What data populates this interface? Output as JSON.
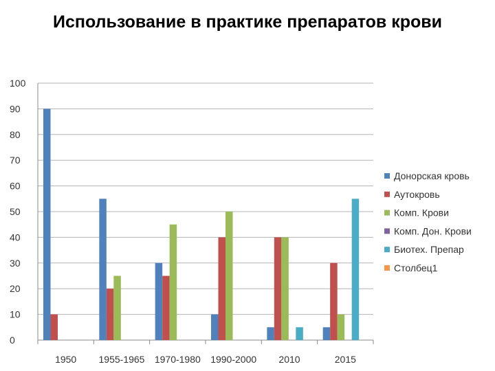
{
  "title": "Использование в практике препаратов крови",
  "chart_data": {
    "type": "bar",
    "title": "",
    "xlabel": "",
    "ylabel": "",
    "ylim": [
      0,
      100
    ],
    "yticks": [
      0,
      10,
      20,
      30,
      40,
      50,
      60,
      70,
      80,
      90,
      100
    ],
    "grid": true,
    "legend_position": "right",
    "categories": [
      "1950",
      "1955-1965",
      "1970-1980",
      "1990-2000",
      "2010",
      "2015"
    ],
    "series": [
      {
        "name": "Донорская кровь",
        "color": "#4F81BD",
        "values": [
          90,
          55,
          30,
          10,
          5,
          5
        ]
      },
      {
        "name": "Аутокровь",
        "color": "#C0504D",
        "values": [
          10,
          20,
          25,
          40,
          40,
          30
        ]
      },
      {
        "name": "Комп. Крови",
        "color": "#9BBB59",
        "values": [
          0,
          25,
          45,
          50,
          40,
          10
        ]
      },
      {
        "name": "Комп. Дон. Крови",
        "color": "#8064A2",
        "values": [
          0,
          0,
          0,
          0,
          0,
          0
        ]
      },
      {
        "name": "Биотех. Препар",
        "color": "#4BACC6",
        "values": [
          0,
          0,
          0,
          0,
          5,
          55
        ]
      },
      {
        "name": "Столбец1",
        "color": "#F79646",
        "values": [
          0,
          0,
          0,
          0,
          0,
          0
        ]
      }
    ]
  }
}
